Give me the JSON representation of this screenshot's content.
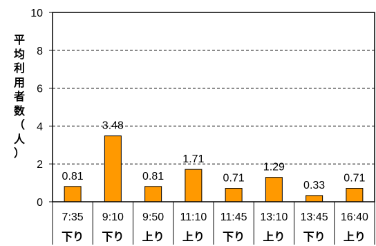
{
  "chart_data": {
    "type": "bar",
    "title": "",
    "xlabel": "",
    "ylabel": "平均利用者数（人）",
    "ylim": [
      0,
      10
    ],
    "yticks": [
      0,
      2,
      4,
      6,
      8,
      10
    ],
    "grid": "horizontal dashed",
    "categories": [
      {
        "time": "7:35",
        "direction": "下り"
      },
      {
        "time": "9:10",
        "direction": "下り"
      },
      {
        "time": "9:50",
        "direction": "上り"
      },
      {
        "time": "11:10",
        "direction": "上り"
      },
      {
        "time": "11:45",
        "direction": "下り"
      },
      {
        "time": "13:10",
        "direction": "上り"
      },
      {
        "time": "13:45",
        "direction": "下り"
      },
      {
        "time": "16:40",
        "direction": "上り"
      }
    ],
    "values": [
      0.81,
      3.48,
      0.81,
      1.71,
      0.71,
      1.29,
      0.33,
      0.71
    ],
    "data_labels": [
      "0.81",
      "3.48",
      "0.81",
      "1.71",
      "0.71",
      "1.29",
      "0.33",
      "0.71"
    ],
    "colors": {
      "bar": "#FF9900",
      "bar_border": "#000000",
      "grid": "#000000"
    }
  }
}
